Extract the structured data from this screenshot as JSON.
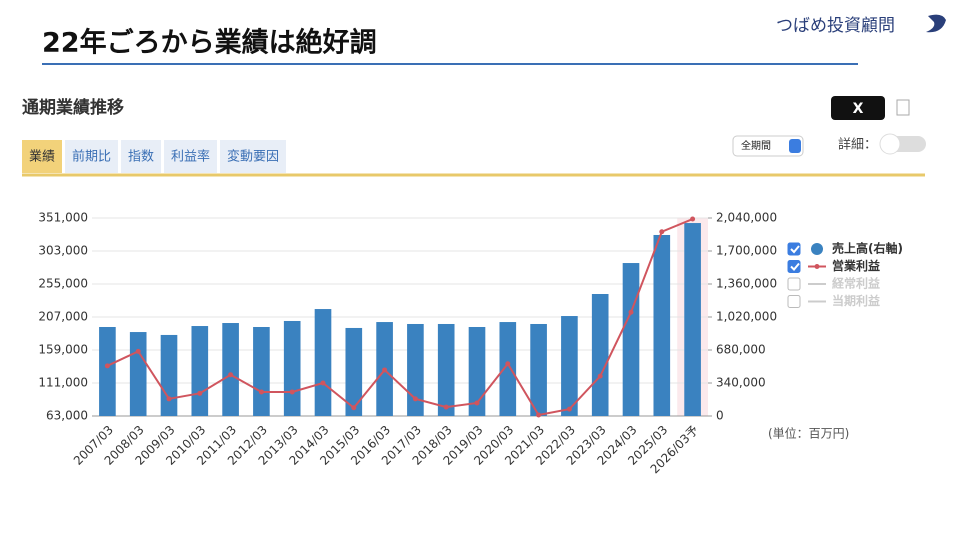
{
  "header": {
    "title": "22年ごろから業績は絶好調",
    "logo": "つばめ投資顧問"
  },
  "panel": {
    "title": "通期業績推移",
    "share": "X",
    "tabs": [
      "業績",
      "前期比",
      "指数",
      "利益率",
      "変動要因"
    ],
    "period": "全期間",
    "detail": "詳細：",
    "unit": "(単位：百万円)"
  },
  "chart_data": {
    "type": "bar-line",
    "categories": [
      "2007/03",
      "2008/03",
      "2009/03",
      "2010/03",
      "2011/03",
      "2012/03",
      "2013/03",
      "2014/03",
      "2015/03",
      "2016/03",
      "2017/03",
      "2018/03",
      "2019/03",
      "2020/03",
      "2021/03",
      "2022/03",
      "2023/03",
      "2024/03",
      "2025/03",
      "2026/03予"
    ],
    "series": [
      {
        "name": "売上高(右軸)",
        "type": "bar",
        "axis": "y2",
        "color": "#3a82c0",
        "values": [
          917000,
          865000,
          835000,
          927000,
          958000,
          917000,
          979000,
          1102000,
          907000,
          968000,
          948000,
          948000,
          917000,
          968000,
          948000,
          1030000,
          1257000,
          1576000,
          1865000,
          1988000
        ]
      },
      {
        "name": "営業利益",
        "type": "line",
        "axis": "y",
        "color": "#d0555e",
        "values": [
          136000,
          157000,
          88000,
          96000,
          123000,
          98000,
          98000,
          111000,
          75000,
          130000,
          88000,
          76000,
          82000,
          139000,
          64500,
          73000,
          121000,
          214000,
          331000,
          349500
        ]
      }
    ],
    "legend_inactive": [
      "経常利益",
      "当期利益"
    ],
    "ylim": [
      63000,
      351000
    ],
    "yticks": [
      {
        "value": 63000,
        "label": "63,000"
      },
      {
        "value": 111000,
        "label": "111,000"
      },
      {
        "value": 159000,
        "label": "159,000"
      },
      {
        "value": 207000,
        "label": "207,000"
      },
      {
        "value": 255000,
        "label": "255,000"
      },
      {
        "value": 303000,
        "label": "303,000"
      },
      {
        "value": 351000,
        "label": "351,000"
      }
    ],
    "y2lim": [
      0,
      2040000
    ],
    "y2ticks": [
      0,
      {
        "value": 340000,
        "label": "340,000"
      },
      {
        "value": 680000,
        "label": "680,000"
      },
      {
        "value": 1020000,
        "label": "1,020,000"
      },
      {
        "value": 1360000,
        "label": "1,360,000"
      },
      {
        "value": 1700000,
        "label": "1,700,000"
      },
      {
        "value": 2040000,
        "label": "2,040,000"
      }
    ],
    "grid": true
  }
}
